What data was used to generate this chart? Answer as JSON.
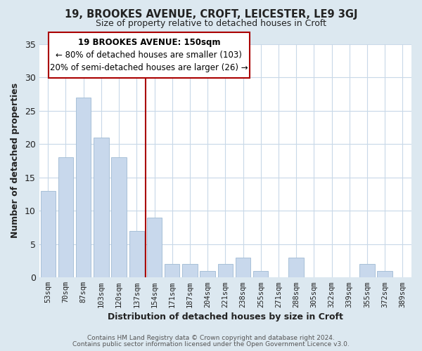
{
  "title1": "19, BROOKES AVENUE, CROFT, LEICESTER, LE9 3GJ",
  "title2": "Size of property relative to detached houses in Croft",
  "xlabel": "Distribution of detached houses by size in Croft",
  "ylabel": "Number of detached properties",
  "categories": [
    "53sqm",
    "70sqm",
    "87sqm",
    "103sqm",
    "120sqm",
    "137sqm",
    "154sqm",
    "171sqm",
    "187sqm",
    "204sqm",
    "221sqm",
    "238sqm",
    "255sqm",
    "271sqm",
    "288sqm",
    "305sqm",
    "322sqm",
    "339sqm",
    "355sqm",
    "372sqm",
    "389sqm"
  ],
  "values": [
    13,
    18,
    27,
    21,
    18,
    7,
    9,
    2,
    2,
    1,
    2,
    3,
    1,
    0,
    3,
    0,
    0,
    0,
    2,
    1,
    0
  ],
  "bar_color": "#c8d8ec",
  "bar_edge_color": "#a8c0d8",
  "vline_x_index": 6,
  "vline_color": "#aa0000",
  "annotation_title": "19 BROOKES AVENUE: 150sqm",
  "annotation_line1": "← 80% of detached houses are smaller (103)",
  "annotation_line2": "20% of semi-detached houses are larger (26) →",
  "annotation_box_color": "#ffffff",
  "annotation_box_edge_color": "#aa0000",
  "ylim": [
    0,
    35
  ],
  "yticks": [
    0,
    5,
    10,
    15,
    20,
    25,
    30,
    35
  ],
  "plot_bg_color": "#ffffff",
  "figure_bg_color": "#dce8f0",
  "grid_color": "#c8d8e8",
  "footer1": "Contains HM Land Registry data © Crown copyright and database right 2024.",
  "footer2": "Contains public sector information licensed under the Open Government Licence v3.0."
}
